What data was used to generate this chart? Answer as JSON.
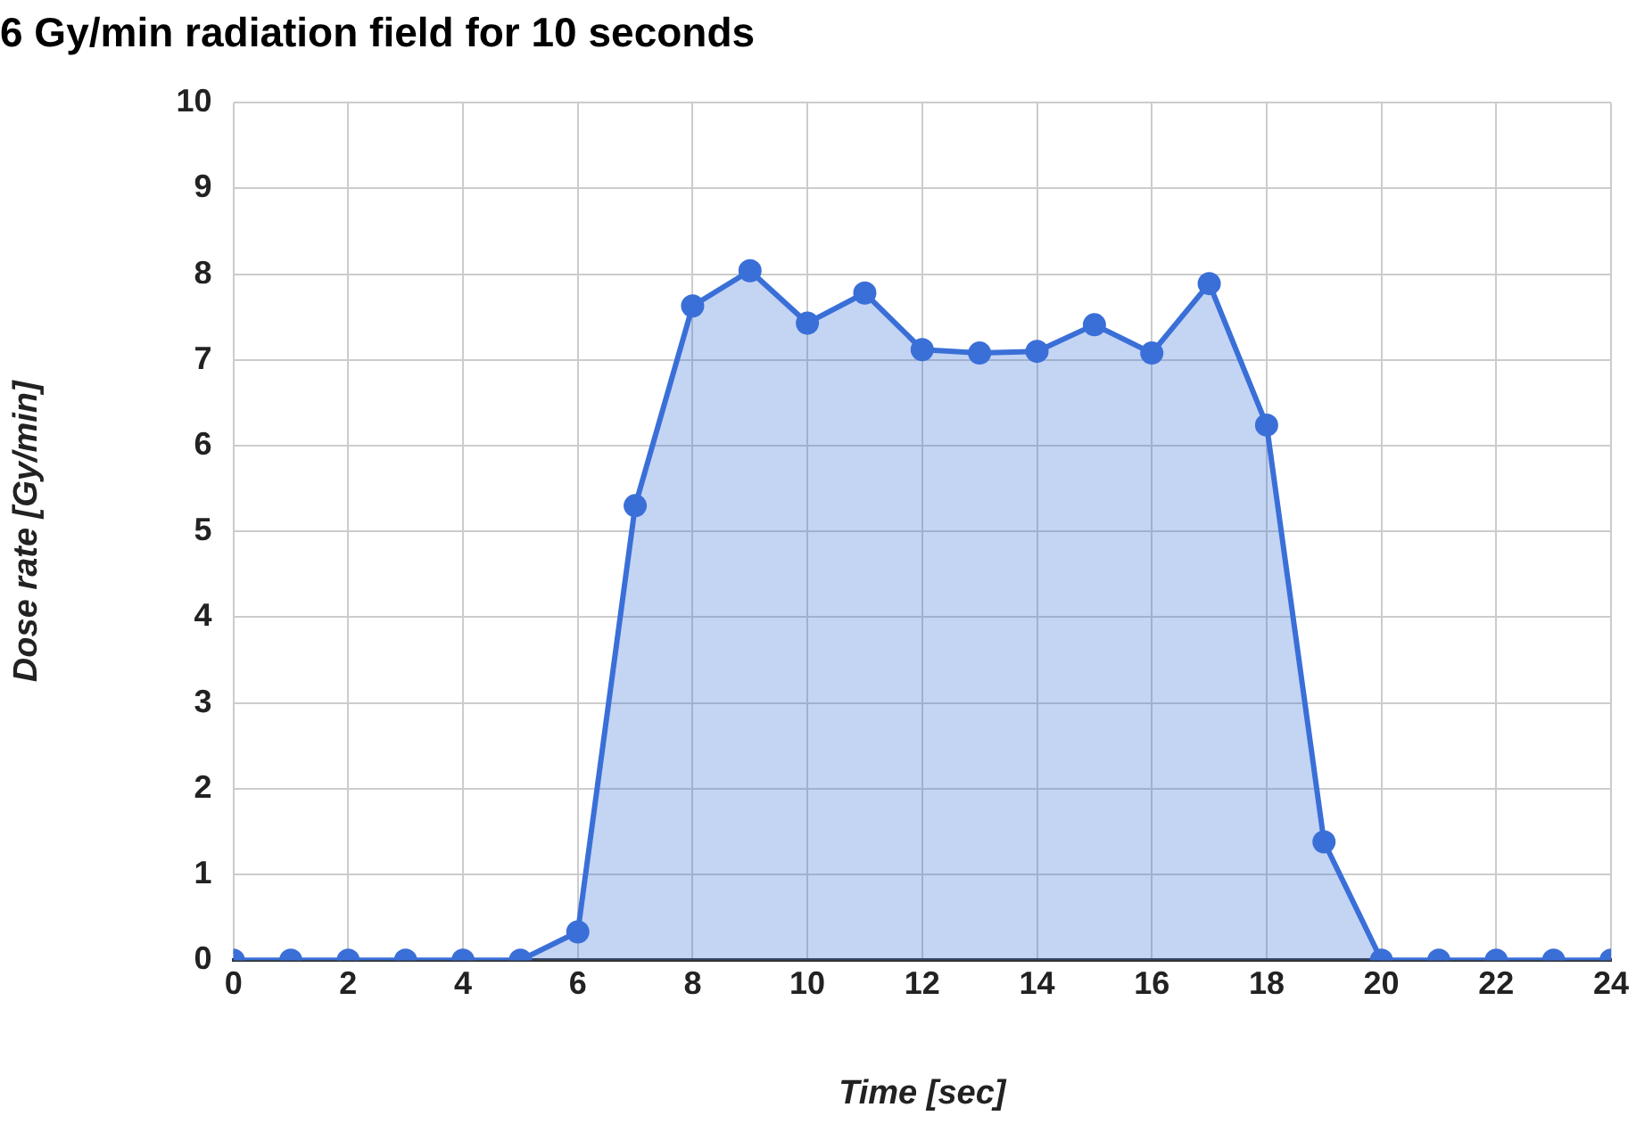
{
  "chart_data": {
    "type": "area",
    "title": "6 Gy/min radiation field for 10 seconds",
    "xlabel": "Time [sec]",
    "ylabel": "Dose rate [Gy/min]",
    "x": [
      0,
      1,
      2,
      3,
      4,
      5,
      6,
      7,
      8,
      9,
      10,
      11,
      12,
      13,
      14,
      15,
      16,
      17,
      18,
      19,
      20,
      21,
      22,
      23,
      24
    ],
    "series": [
      {
        "color": "#3a6fd8",
        "values": [
          0,
          0,
          0,
          0,
          0,
          0,
          0.33,
          5.3,
          7.63,
          8.04,
          7.43,
          7.78,
          7.12,
          7.08,
          7.1,
          7.41,
          7.08,
          7.89,
          6.24,
          1.38,
          0,
          0,
          0,
          0,
          0
        ]
      }
    ],
    "xlim": [
      0,
      24
    ],
    "xticks": [
      0,
      2,
      4,
      6,
      8,
      10,
      12,
      14,
      16,
      18,
      20,
      22,
      24
    ],
    "ylim": [
      0,
      10
    ],
    "yticks": [
      0,
      1,
      2,
      3,
      4,
      5,
      6,
      7,
      8,
      9,
      10
    ],
    "grid": true,
    "legend": false,
    "marker": "circle",
    "line_style": "solid"
  }
}
